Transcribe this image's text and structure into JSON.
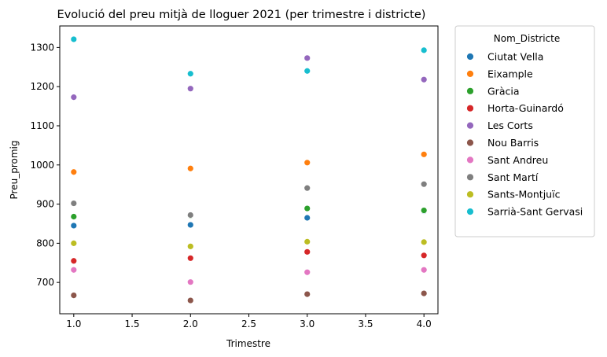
{
  "chart_data": {
    "type": "scatter",
    "title": "Evolució del preu mitjà de lloguer 2021 (per trimestre i districte)",
    "xlabel": "Trimestre",
    "ylabel": "Preu_promig",
    "xlim": [
      0.88,
      4.12
    ],
    "ylim": [
      620,
      1355
    ],
    "xticks": [
      "1.0",
      "1.5",
      "2.0",
      "2.5",
      "3.0",
      "3.5",
      "4.0"
    ],
    "xtick_values": [
      1.0,
      1.5,
      2.0,
      2.5,
      3.0,
      3.5,
      4.0
    ],
    "yticks": [
      "700",
      "800",
      "900",
      "1000",
      "1100",
      "1200",
      "1300"
    ],
    "ytick_values": [
      700,
      800,
      900,
      1000,
      1100,
      1200,
      1300
    ],
    "grid": false,
    "legend_title": "Nom_Districte",
    "legend_placement": "outside-right-top",
    "x": [
      1,
      2,
      3,
      4
    ],
    "series": [
      {
        "name": "Ciutat Vella",
        "color": "#1f77b4",
        "values": [
          845,
          847,
          865,
          882
        ]
      },
      {
        "name": "Eixample",
        "color": "#ff7f0e",
        "values": [
          982,
          991,
          1006,
          1027
        ]
      },
      {
        "name": "Gràcia",
        "color": "#2ca02c",
        "values": [
          868,
          870,
          889,
          884
        ]
      },
      {
        "name": "Horta-Guinardó",
        "color": "#d62728",
        "values": [
          755,
          762,
          778,
          769
        ]
      },
      {
        "name": "Les Corts",
        "color": "#9467bd",
        "values": [
          1173,
          1195,
          1273,
          1218
        ]
      },
      {
        "name": "Nou Barris",
        "color": "#8c564b",
        "values": [
          667,
          654,
          670,
          672
        ]
      },
      {
        "name": "Sant Andreu",
        "color": "#e377c2",
        "values": [
          732,
          701,
          726,
          732
        ]
      },
      {
        "name": "Sant Martí",
        "color": "#7f7f7f",
        "values": [
          902,
          872,
          941,
          951
        ]
      },
      {
        "name": "Sants-Montjuïc",
        "color": "#bcbd22",
        "values": [
          800,
          792,
          804,
          803
        ]
      },
      {
        "name": "Sarrià-Sant Gervasi",
        "color": "#17becf",
        "values": [
          1321,
          1233,
          1240,
          1293
        ]
      }
    ]
  }
}
